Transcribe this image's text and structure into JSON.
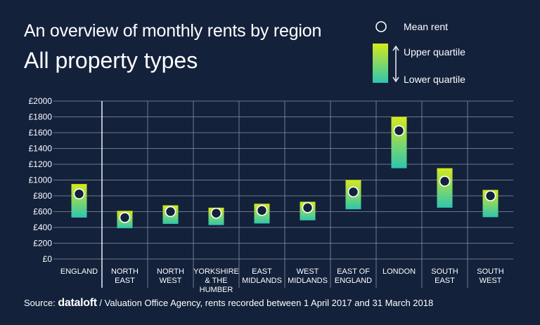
{
  "chart_data": {
    "type": "range",
    "title": "An overview of monthly rents by region",
    "subtitle": "All property types",
    "ylim": [
      0,
      2000
    ],
    "yticks": [
      "£2000",
      "£1800",
      "£1600",
      "£1400",
      "£1200",
      "£1000",
      "£800",
      "£600",
      "£400",
      "£200",
      "£0"
    ],
    "ytick_values": [
      2000,
      1800,
      1600,
      1400,
      1200,
      1000,
      800,
      600,
      400,
      200,
      0
    ],
    "categories": [
      [
        "ENGLAND"
      ],
      [
        "NORTH",
        "EAST"
      ],
      [
        "NORTH",
        "WEST"
      ],
      [
        "YORKSHIRE",
        "& THE",
        "HUMBER"
      ],
      [
        "EAST",
        "MIDLANDS"
      ],
      [
        "WEST",
        "MIDLANDS"
      ],
      [
        "EAST OF",
        "ENGLAND"
      ],
      [
        "LONDON"
      ],
      [
        "SOUTH",
        "EAST"
      ],
      [
        "SOUTH",
        "WEST"
      ]
    ],
    "series": [
      {
        "name": "Mean rent",
        "values": [
          825,
          525,
          600,
          580,
          615,
          650,
          850,
          1625,
          985,
          800
        ]
      },
      {
        "name": "Upper quartile",
        "values": [
          950,
          610,
          680,
          650,
          700,
          725,
          1000,
          1800,
          1150,
          875
        ]
      },
      {
        "name": "Lower quartile",
        "values": [
          525,
          390,
          445,
          430,
          450,
          490,
          630,
          1150,
          650,
          530
        ]
      }
    ],
    "legend": {
      "mean_label": "Mean rent",
      "upper_label": "Upper quartile",
      "lower_label": "Lower quartile",
      "placement": "top-right"
    },
    "colors": {
      "background": "#13213b",
      "top": "#d6ea1c",
      "bottom": "#2ec6b0",
      "grid": "#8a93a6",
      "marker_fill": "#13213b",
      "marker_stroke": "#ffffff"
    }
  },
  "footer": {
    "source_prefix": "Source: ",
    "brand": "dataloft",
    "source_rest": " / Valuation Office Agency, rents recorded between 1 April 2017 and 31 March 2018"
  }
}
